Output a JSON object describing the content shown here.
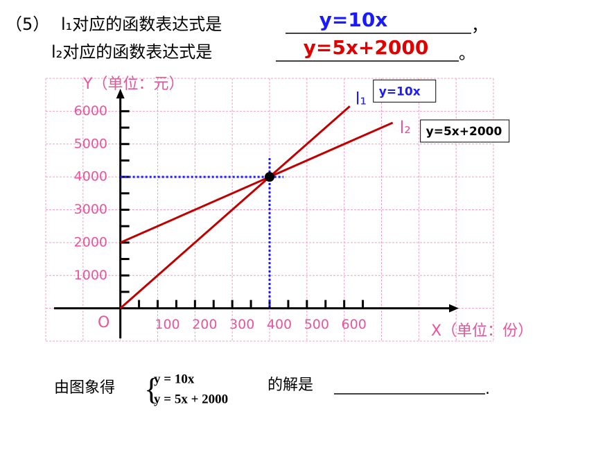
{
  "question": {
    "number": "（5）",
    "line1": {
      "prefix": "l₁对应的函数表达式是",
      "answer": "y=10x",
      "suffix": "，"
    },
    "line2": {
      "prefix": "l₂对应的函数表达式是",
      "answer": "y=5x+2000",
      "suffix": "。"
    }
  },
  "chart_data": {
    "type": "line",
    "ylabel": "Y（单位：元）",
    "xlabel": "X（单位：份）",
    "origin_label": "O",
    "xlim": [
      -200,
      1000
    ],
    "ylim": [
      -1000,
      7000
    ],
    "xticks": [
      100,
      200,
      300,
      400,
      500,
      600
    ],
    "yticks": [
      1000,
      2000,
      3000,
      4000,
      5000,
      6000
    ],
    "xminorticks": [
      50,
      150,
      250,
      350,
      450,
      550,
      650
    ],
    "yminorticks": [
      500,
      1500,
      2500,
      3500,
      4500,
      5500
    ],
    "xgrid": [
      -200,
      -100,
      0,
      100,
      200,
      300,
      400,
      500,
      600,
      700,
      800,
      900,
      1000
    ],
    "ygrid": [
      -1000,
      0,
      1000,
      2000,
      3000,
      4000,
      5000,
      6000,
      7000
    ],
    "grid": true,
    "series": [
      {
        "name": "l₁",
        "color": "#c00000",
        "label_color": "#1a1aff",
        "equation": "y=10x",
        "equation_color": "#1a1aff",
        "x": [
          0,
          615
        ],
        "values": [
          0,
          6150
        ]
      },
      {
        "name": "l₂",
        "color": "#c00000",
        "label_color": "#e8559a",
        "equation": "y=5x+2000",
        "equation_color": "#000000",
        "x": [
          0,
          730
        ],
        "values": [
          2000,
          5650
        ]
      }
    ],
    "point": {
      "x": 400,
      "y": 4000
    }
  },
  "footer": {
    "prefix": "由图象得",
    "equations": [
      "y = 10x",
      "y = 5x + 2000"
    ],
    "suffix": "的解是",
    "end": "."
  }
}
